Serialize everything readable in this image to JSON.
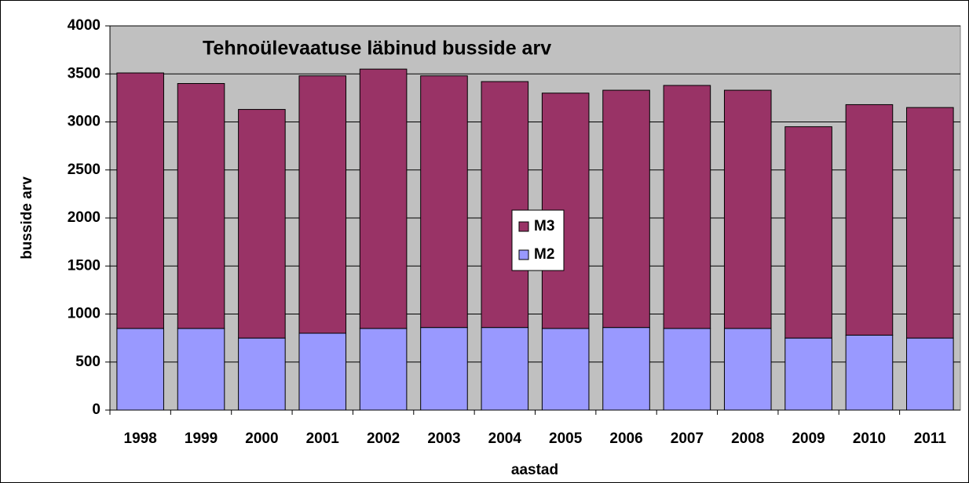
{
  "chart_data": {
    "type": "stacked_bar",
    "title": "Tehnoülevaatuse läbinud busside arv",
    "x_label": "aastad",
    "y_label": "busside arv",
    "categories": [
      "1998",
      "1999",
      "2000",
      "2001",
      "2002",
      "2003",
      "2004",
      "2005",
      "2006",
      "2007",
      "2008",
      "2009",
      "2010",
      "2011"
    ],
    "series": [
      {
        "name": "M2",
        "color": "#9999ff",
        "values": [
          850,
          850,
          750,
          800,
          850,
          860,
          860,
          850,
          860,
          850,
          850,
          750,
          780,
          750
        ]
      },
      {
        "name": "M3",
        "color": "#993366",
        "values": [
          2660,
          2550,
          2380,
          2680,
          2700,
          2620,
          2560,
          2450,
          2470,
          2530,
          2480,
          2200,
          2400,
          2400
        ]
      }
    ],
    "ylim": [
      0,
      4000
    ],
    "yticks": [
      0,
      500,
      1000,
      1500,
      2000,
      2500,
      3000,
      3500,
      4000
    ],
    "grid": true,
    "plot_background": "#c0c0c0"
  }
}
